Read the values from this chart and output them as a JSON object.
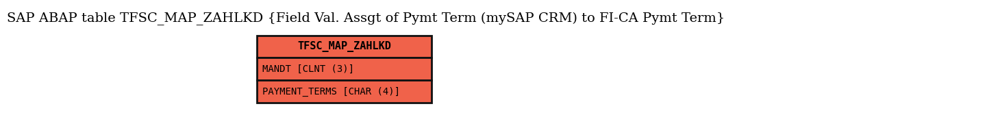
{
  "title": "SAP ABAP table TFSC_MAP_ZAHLKD {Field Val. Assgt of Pymt Term (mySAP CRM) to FI-CA Pymt Term}",
  "title_fontsize": 14,
  "entity_name": "TFSC_MAP_ZAHLKD",
  "fields": [
    "MANDT [CLNT (3)]",
    "PAYMENT_TERMS [CHAR (4)]"
  ],
  "box_color": "#F0624A",
  "border_color": "#111111",
  "text_color": "#000000",
  "header_fontsize": 11,
  "field_fontsize": 10,
  "background_color": "#ffffff"
}
